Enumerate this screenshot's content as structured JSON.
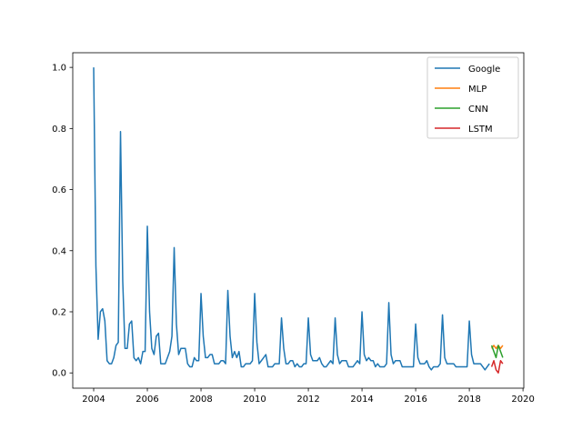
{
  "chart_data": {
    "type": "line",
    "title": "",
    "xlabel": "",
    "ylabel": "",
    "xlim": [
      2003.22,
      2020.03
    ],
    "ylim": [
      -0.05,
      1.048
    ],
    "x_ticks": [
      2004,
      2006,
      2008,
      2010,
      2012,
      2014,
      2016,
      2018,
      2020
    ],
    "x_tick_labels": [
      "2004",
      "2006",
      "2008",
      "2010",
      "2012",
      "2014",
      "2016",
      "2018",
      "2020"
    ],
    "y_ticks": [
      0.0,
      0.2,
      0.4,
      0.6,
      0.8,
      1.0
    ],
    "y_tick_labels": [
      "0.0",
      "0.2",
      "0.4",
      "0.6",
      "0.8",
      "1.0"
    ],
    "grid": false,
    "legend_position": "top-right",
    "series": [
      {
        "name": "Google",
        "color": "#1f77b4",
        "x_start": 2004,
        "step_years": 0.08333,
        "values": [
          1.0,
          0.35,
          0.11,
          0.2,
          0.21,
          0.17,
          0.04,
          0.03,
          0.03,
          0.05,
          0.09,
          0.1,
          0.79,
          0.3,
          0.08,
          0.08,
          0.16,
          0.17,
          0.05,
          0.04,
          0.05,
          0.03,
          0.07,
          0.07,
          0.48,
          0.2,
          0.08,
          0.06,
          0.12,
          0.13,
          0.03,
          0.03,
          0.03,
          0.05,
          0.07,
          0.12,
          0.41,
          0.16,
          0.06,
          0.08,
          0.08,
          0.08,
          0.03,
          0.02,
          0.02,
          0.05,
          0.04,
          0.04,
          0.26,
          0.12,
          0.05,
          0.05,
          0.06,
          0.06,
          0.03,
          0.03,
          0.03,
          0.04,
          0.04,
          0.03,
          0.27,
          0.12,
          0.05,
          0.07,
          0.05,
          0.07,
          0.02,
          0.02,
          0.03,
          0.03,
          0.03,
          0.04,
          0.26,
          0.1,
          0.03,
          0.04,
          0.05,
          0.06,
          0.02,
          0.02,
          0.02,
          0.03,
          0.03,
          0.03,
          0.18,
          0.08,
          0.03,
          0.03,
          0.04,
          0.04,
          0.02,
          0.03,
          0.02,
          0.02,
          0.03,
          0.03,
          0.18,
          0.06,
          0.04,
          0.04,
          0.04,
          0.05,
          0.03,
          0.02,
          0.02,
          0.03,
          0.04,
          0.03,
          0.18,
          0.06,
          0.03,
          0.04,
          0.04,
          0.04,
          0.02,
          0.02,
          0.02,
          0.03,
          0.04,
          0.03,
          0.2,
          0.06,
          0.04,
          0.05,
          0.04,
          0.04,
          0.02,
          0.03,
          0.02,
          0.02,
          0.02,
          0.03,
          0.23,
          0.06,
          0.03,
          0.04,
          0.04,
          0.04,
          0.02,
          0.02,
          0.02,
          0.02,
          0.02,
          0.02,
          0.16,
          0.05,
          0.03,
          0.03,
          0.03,
          0.04,
          0.02,
          0.01,
          0.02,
          0.02,
          0.02,
          0.03,
          0.19,
          0.05,
          0.03,
          0.03,
          0.03,
          0.03,
          0.02,
          0.02,
          0.02,
          0.02,
          0.02,
          0.02,
          0.17,
          0.06,
          0.03,
          0.03,
          0.03,
          0.03,
          0.02,
          0.01,
          0.02,
          0.03
        ]
      },
      {
        "name": "MLP",
        "color": "#ff7f0e",
        "x_start": 2018.83,
        "step_years": 0.08333,
        "values": [
          0.08,
          0.09,
          0.08,
          0.09,
          0.08,
          0.09
        ]
      },
      {
        "name": "CNN",
        "color": "#2ca02c",
        "x_start": 2018.83,
        "step_years": 0.08333,
        "values": [
          0.09,
          0.07,
          0.05,
          0.09,
          0.07,
          0.05
        ]
      },
      {
        "name": "LSTM",
        "color": "#d62728",
        "x_start": 2018.83,
        "step_years": 0.08333,
        "values": [
          0.02,
          0.04,
          0.01,
          0.0,
          0.04,
          0.03
        ]
      }
    ]
  }
}
